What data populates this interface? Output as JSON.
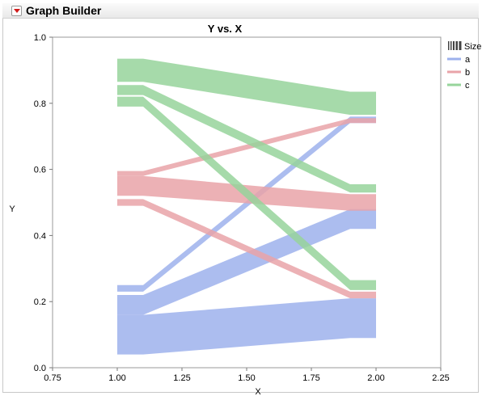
{
  "window": {
    "title": "Graph Builder"
  },
  "chart_data": {
    "type": "line",
    "title": "Y vs. X",
    "xlabel": "X",
    "ylabel": "Y",
    "xlim": [
      0.75,
      2.25
    ],
    "ylim": [
      0.0,
      1.0
    ],
    "xticks": [
      "0.75",
      "1.00",
      "1.25",
      "1.50",
      "1.75",
      "2.00",
      "2.25"
    ],
    "yticks": [
      "0.0",
      "0.2",
      "0.4",
      "0.6",
      "0.8",
      "1.0"
    ],
    "legend": {
      "size_label": "Size",
      "position": "right"
    },
    "series": [
      {
        "name": "a",
        "color": "#9db1ec",
        "bands": [
          {
            "x": [
              1.0,
              1.1,
              1.9,
              2.0
            ],
            "lower": [
              0.23,
              0.23,
              0.74,
              0.74
            ],
            "upper": [
              0.25,
              0.25,
              0.76,
              0.76
            ]
          },
          {
            "x": [
              1.0,
              1.1,
              1.9,
              2.0
            ],
            "lower": [
              0.16,
              0.16,
              0.42,
              0.42
            ],
            "upper": [
              0.22,
              0.22,
              0.48,
              0.48
            ]
          },
          {
            "x": [
              1.0,
              1.1,
              1.9,
              2.0
            ],
            "lower": [
              0.04,
              0.04,
              0.09,
              0.09
            ],
            "upper": [
              0.16,
              0.16,
              0.21,
              0.21
            ]
          }
        ]
      },
      {
        "name": "b",
        "color": "#e9a3a8",
        "bands": [
          {
            "x": [
              1.0,
              1.1,
              1.9,
              2.0
            ],
            "lower": [
              0.58,
              0.58,
              0.74,
              0.74
            ],
            "upper": [
              0.595,
              0.595,
              0.755,
              0.755
            ]
          },
          {
            "x": [
              1.0,
              1.1,
              1.9,
              2.0
            ],
            "lower": [
              0.52,
              0.52,
              0.475,
              0.475
            ],
            "upper": [
              0.58,
              0.58,
              0.525,
              0.525
            ]
          },
          {
            "x": [
              1.0,
              1.1,
              1.9,
              2.0
            ],
            "lower": [
              0.49,
              0.49,
              0.21,
              0.21
            ],
            "upper": [
              0.51,
              0.51,
              0.23,
              0.23
            ]
          }
        ]
      },
      {
        "name": "c",
        "color": "#97d49b",
        "bands": [
          {
            "x": [
              1.0,
              1.1,
              1.9,
              2.0
            ],
            "lower": [
              0.865,
              0.865,
              0.765,
              0.765
            ],
            "upper": [
              0.935,
              0.935,
              0.835,
              0.835
            ]
          },
          {
            "x": [
              1.0,
              1.1,
              1.9,
              2.0
            ],
            "lower": [
              0.825,
              0.825,
              0.53,
              0.53
            ],
            "upper": [
              0.855,
              0.855,
              0.555,
              0.555
            ]
          },
          {
            "x": [
              1.0,
              1.1,
              1.9,
              2.0
            ],
            "lower": [
              0.79,
              0.79,
              0.235,
              0.235
            ],
            "upper": [
              0.82,
              0.82,
              0.265,
              0.265
            ]
          }
        ]
      }
    ]
  }
}
